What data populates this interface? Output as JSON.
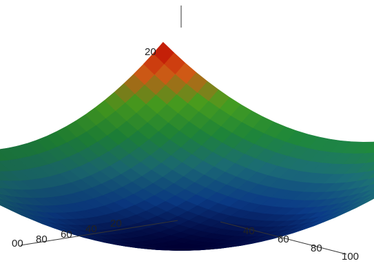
{
  "chart_data": {
    "type": "surface",
    "title": "",
    "xlabel": "",
    "ylabel": "",
    "zlabel": "",
    "function": "z = x^2 + y^2",
    "x_axis": {
      "range": [
        -100,
        100
      ],
      "tick_labels": [
        "00",
        "80",
        "60",
        "40",
        "20"
      ]
    },
    "y_axis": {
      "range": [
        -100,
        100
      ],
      "tick_labels": [
        "40",
        "60",
        "80",
        "100"
      ]
    },
    "z_axis": {
      "range": [
        0,
        20000
      ],
      "tick_labels": [
        "20"
      ]
    },
    "colormap": [
      "#00003a",
      "#0b3d8c",
      "#1c6f7a",
      "#1f8a3a",
      "#4aa31f",
      "#e05a16",
      "#c40000"
    ],
    "grid": false,
    "legend": "none"
  }
}
